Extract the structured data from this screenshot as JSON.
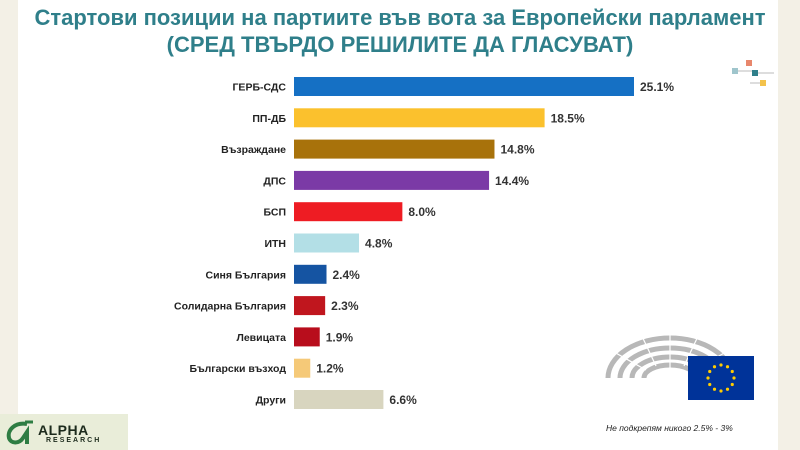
{
  "title": {
    "line1": "Стартови позиции на партиите във вота за Европейски парламент",
    "line2": "(СРЕД ТВЪРДО РЕШИЛИТЕ ДА ГЛАСУВАТ)"
  },
  "chart_data": {
    "type": "bar",
    "orientation": "horizontal",
    "categories": [
      "ГЕРБ-СДС",
      "ПП-ДБ",
      "Възраждане",
      "ДПС",
      "БСП",
      "ИТН",
      "Синя България",
      "Солидарна България",
      "Левицата",
      "Български възход",
      "Други"
    ],
    "values": [
      25.1,
      18.5,
      14.8,
      14.4,
      8.0,
      4.8,
      2.4,
      2.3,
      1.9,
      1.2,
      6.6
    ],
    "value_labels": [
      "25.1%",
      "18.5%",
      "14.8%",
      "14.4%",
      "8.0%",
      "4.8%",
      "2.4%",
      "2.3%",
      "1.9%",
      "1.2%",
      "6.6%"
    ],
    "colors": [
      "#1570c4",
      "#fbc12d",
      "#a8720b",
      "#7b3aa6",
      "#ee1c23",
      "#b3dfe6",
      "#1554a2",
      "#c0161e",
      "#b80d1c",
      "#f5c978",
      "#d8d5bf"
    ],
    "xlim": [
      0,
      25.1
    ],
    "grid": false,
    "legend": "none"
  },
  "footnote": "Не подкрепям никого 2.5% - 3%",
  "logo": {
    "name": "ALPHA",
    "sub": "RESEARCH",
    "colors": {
      "mark": "#2e7d43",
      "text": "#1c2a1c"
    }
  },
  "eu_flag": {
    "color": "#003399",
    "stars": "#ffcc00"
  }
}
